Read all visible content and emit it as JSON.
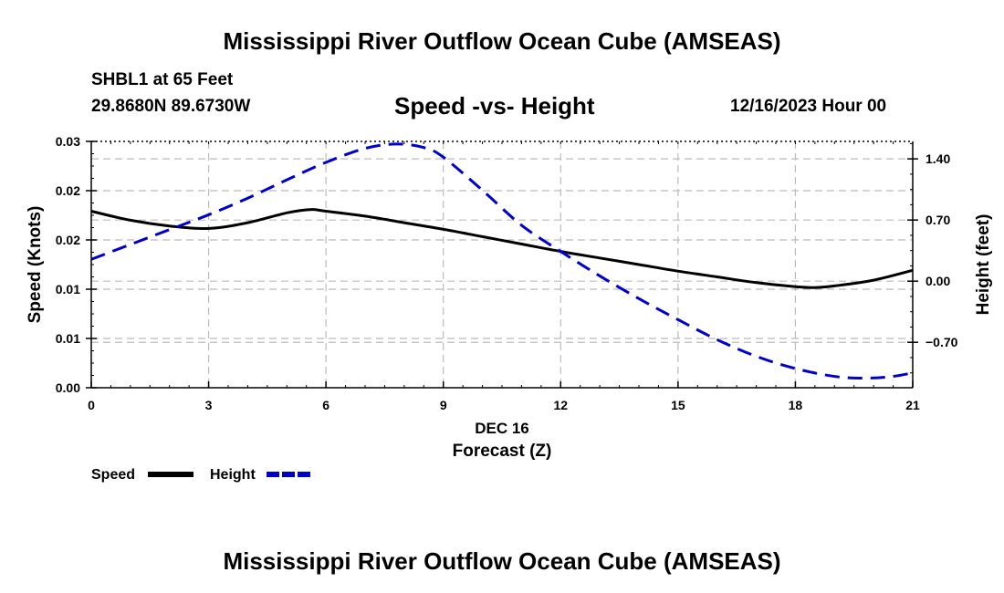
{
  "header": {
    "title": "Mississippi River Outflow Ocean Cube (AMSEAS)",
    "station": "SHBL1 at 65 Feet",
    "coords": "29.8680N  89.6730W",
    "chart_title": "Speed -vs- Height",
    "datetime": "12/16/2023 Hour 00"
  },
  "footer": {
    "title": "Mississippi River Outflow Ocean Cube (AMSEAS)"
  },
  "colors": {
    "speed": "#000000",
    "height": "#0000cc",
    "grid": "#bbbbbb"
  },
  "chart_data": {
    "type": "line",
    "title": "Speed -vs- Height",
    "xlabel": "Forecast (Z)",
    "xlabel_date": "DEC 16",
    "ylabel": "Speed (Knots)",
    "y2label": "Height (feet)",
    "xlim": [
      0,
      21
    ],
    "ylim": [
      0,
      0.03
    ],
    "y2lim": [
      -1.22,
      1.6
    ],
    "x_ticks": [
      0,
      3,
      6,
      9,
      12,
      15,
      18,
      21
    ],
    "x_tick_labels": [
      "0",
      "3",
      "6",
      "9",
      "12",
      "15",
      "18",
      "21"
    ],
    "y_ticks": [
      0,
      0.006,
      0.012,
      0.018,
      0.024,
      0.03
    ],
    "y_tick_labels": [
      "0.00",
      "0.01",
      "0.01",
      "0.02",
      "0.02",
      "0.03"
    ],
    "y2_ticks": [
      -0.7,
      0,
      0.7,
      1.4
    ],
    "y2_tick_labels": [
      "−0.70",
      "0.00",
      "0.70",
      "1.40"
    ],
    "series": [
      {
        "name": "Speed",
        "axis": "left",
        "style": "solid",
        "x": [
          0,
          1,
          2,
          3,
          4,
          5,
          5.6,
          6,
          7,
          8,
          9,
          10,
          11,
          12,
          13,
          14,
          15,
          16,
          17,
          18,
          18.5,
          19,
          20,
          21
        ],
        "values": [
          0.0215,
          0.0204,
          0.0197,
          0.0194,
          0.0201,
          0.0213,
          0.0217,
          0.0215,
          0.0209,
          0.0201,
          0.0193,
          0.0184,
          0.0175,
          0.0166,
          0.0158,
          0.015,
          0.0142,
          0.0135,
          0.0128,
          0.0123,
          0.0122,
          0.0124,
          0.0131,
          0.0143
        ]
      },
      {
        "name": "Height",
        "axis": "right",
        "style": "dashed",
        "x": [
          0,
          1,
          2,
          3,
          4,
          5,
          6,
          7,
          7.8,
          8.5,
          9,
          10,
          11,
          12,
          13,
          14,
          15,
          16,
          17,
          18,
          19,
          19.8,
          20.5,
          21
        ],
        "values": [
          0.25,
          0.42,
          0.59,
          0.76,
          0.95,
          1.16,
          1.36,
          1.52,
          1.57,
          1.53,
          1.42,
          1.04,
          0.64,
          0.34,
          0.06,
          -0.2,
          -0.44,
          -0.67,
          -0.86,
          -1.0,
          -1.09,
          -1.11,
          -1.09,
          -1.05
        ]
      }
    ],
    "legend": [
      {
        "label": "Speed",
        "style": "solid"
      },
      {
        "label": "Height",
        "style": "dashed"
      }
    ],
    "legend_position": "bottom-left"
  }
}
